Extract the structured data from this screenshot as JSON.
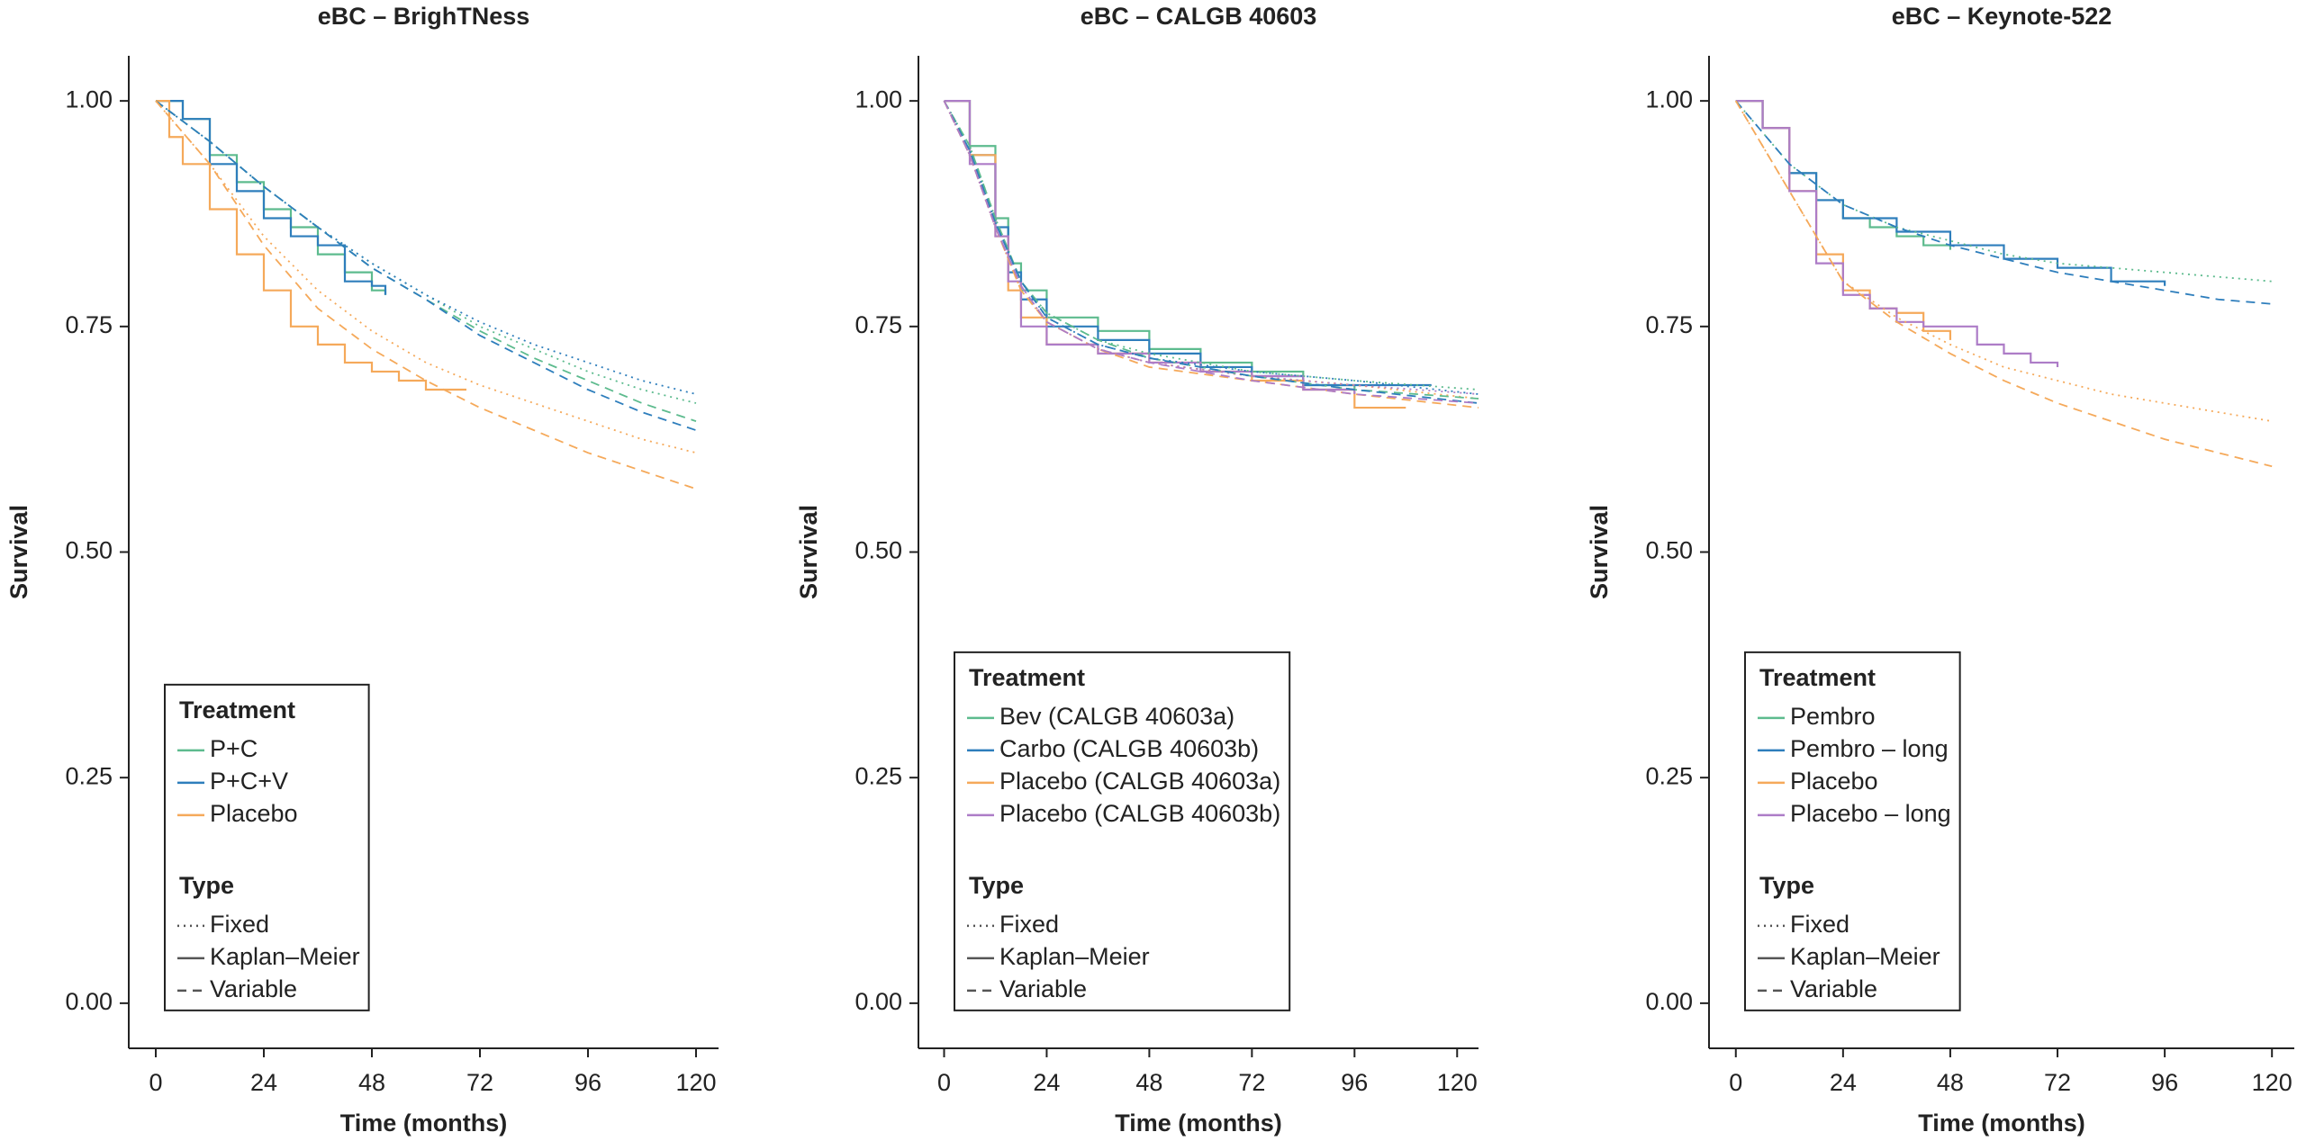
{
  "chart_data": [
    {
      "type": "line",
      "title": "eBC – BrighTNess",
      "x_label": "Time (months)",
      "y_label": "Survival",
      "xlim": [
        -6,
        125
      ],
      "ylim": [
        -0.05,
        1.05
      ],
      "xticks": [
        0,
        24,
        48,
        72,
        96,
        120
      ],
      "yticks": [
        {
          "value": 0,
          "label": "0.00"
        },
        {
          "value": 0.25,
          "label": "0.25"
        },
        {
          "value": 0.5,
          "label": "0.50"
        },
        {
          "value": 0.75,
          "label": "0.75"
        },
        {
          "value": 1,
          "label": "1.00"
        }
      ],
      "legend": {
        "position": "lower left",
        "groups": [
          {
            "title": "Treatment",
            "entries": [
              {
                "label": "P+C",
                "color": "#5dbb8e"
              },
              {
                "label": "P+C+V",
                "color": "#2e7ebc"
              },
              {
                "label": "Placebo",
                "color": "#f5a95a"
              }
            ]
          },
          {
            "title": "Type",
            "entries": [
              {
                "label": "Fixed",
                "dash": "dotted"
              },
              {
                "label": "Kaplan–Meier",
                "dash": "solid",
                "step": true
              },
              {
                "label": "Variable",
                "dash": "dashed"
              }
            ]
          }
        ]
      },
      "series": [
        {
          "treatment": 0,
          "linetype": 1,
          "x": [
            0,
            6,
            12,
            18,
            24,
            30,
            36,
            42,
            48,
            51
          ],
          "values": [
            1,
            0.98,
            0.94,
            0.91,
            0.88,
            0.86,
            0.83,
            0.81,
            0.79,
            0.785
          ]
        },
        {
          "treatment": 1,
          "linetype": 1,
          "x": [
            0,
            6,
            12,
            18,
            24,
            30,
            36,
            42,
            48,
            51
          ],
          "values": [
            1,
            0.98,
            0.93,
            0.9,
            0.87,
            0.85,
            0.84,
            0.8,
            0.795,
            0.785
          ]
        },
        {
          "treatment": 2,
          "linetype": 1,
          "x": [
            0,
            3,
            6,
            12,
            18,
            24,
            30,
            36,
            42,
            48,
            54,
            60,
            69
          ],
          "values": [
            1,
            0.96,
            0.93,
            0.88,
            0.83,
            0.79,
            0.75,
            0.73,
            0.71,
            0.7,
            0.69,
            0.68,
            0.68
          ]
        },
        {
          "treatment": 0,
          "linetype": 0,
          "x": [
            0,
            12,
            24,
            36,
            48,
            60,
            72,
            84,
            96,
            108,
            120
          ],
          "values": [
            1,
            0.955,
            0.905,
            0.86,
            0.82,
            0.785,
            0.75,
            0.725,
            0.7,
            0.68,
            0.665
          ]
        },
        {
          "treatment": 1,
          "linetype": 0,
          "x": [
            0,
            12,
            24,
            36,
            48,
            60,
            72,
            84,
            96,
            108,
            120
          ],
          "values": [
            1,
            0.955,
            0.905,
            0.86,
            0.82,
            0.785,
            0.755,
            0.73,
            0.71,
            0.69,
            0.675
          ]
        },
        {
          "treatment": 2,
          "linetype": 0,
          "x": [
            0,
            12,
            24,
            36,
            48,
            60,
            72,
            84,
            96,
            108,
            120
          ],
          "values": [
            1,
            0.93,
            0.85,
            0.79,
            0.745,
            0.71,
            0.685,
            0.665,
            0.645,
            0.625,
            0.61
          ]
        },
        {
          "treatment": 0,
          "linetype": 2,
          "x": [
            0,
            12,
            24,
            36,
            48,
            60,
            72,
            84,
            96,
            108,
            120
          ],
          "values": [
            1,
            0.955,
            0.905,
            0.86,
            0.815,
            0.78,
            0.745,
            0.715,
            0.69,
            0.665,
            0.645
          ]
        },
        {
          "treatment": 1,
          "linetype": 2,
          "x": [
            0,
            12,
            24,
            36,
            48,
            60,
            72,
            84,
            96,
            108,
            120
          ],
          "values": [
            1,
            0.955,
            0.905,
            0.86,
            0.815,
            0.78,
            0.74,
            0.71,
            0.68,
            0.655,
            0.635
          ]
        },
        {
          "treatment": 2,
          "linetype": 2,
          "x": [
            0,
            12,
            24,
            36,
            48,
            60,
            72,
            84,
            96,
            108,
            120
          ],
          "values": [
            1,
            0.93,
            0.84,
            0.77,
            0.725,
            0.69,
            0.66,
            0.635,
            0.61,
            0.59,
            0.57
          ]
        }
      ]
    },
    {
      "type": "line",
      "title": "eBC – CALGB 40603",
      "x_label": "Time (months)",
      "y_label": "Survival",
      "xlim": [
        -6,
        125
      ],
      "ylim": [
        -0.05,
        1.05
      ],
      "xticks": [
        0,
        24,
        48,
        72,
        96,
        120
      ],
      "yticks": [
        {
          "value": 0,
          "label": "0.00"
        },
        {
          "value": 0.25,
          "label": "0.25"
        },
        {
          "value": 0.5,
          "label": "0.50"
        },
        {
          "value": 0.75,
          "label": "0.75"
        },
        {
          "value": 1,
          "label": "1.00"
        }
      ],
      "legend": {
        "position": "lower left",
        "groups": [
          {
            "title": "Treatment",
            "entries": [
              {
                "label": "Bev (CALGB 40603a)",
                "color": "#5dbb8e"
              },
              {
                "label": "Carbo (CALGB 40603b)",
                "color": "#2e7ebc"
              },
              {
                "label": "Placebo (CALGB 40603a)",
                "color": "#f5a95a"
              },
              {
                "label": "Placebo (CALGB 40603b)",
                "color": "#ad7cc7"
              }
            ]
          },
          {
            "title": "Type",
            "entries": [
              {
                "label": "Fixed",
                "dash": "dotted"
              },
              {
                "label": "Kaplan–Meier",
                "dash": "solid",
                "step": true
              },
              {
                "label": "Variable",
                "dash": "dashed"
              }
            ]
          }
        ]
      },
      "series": [
        {
          "treatment": 0,
          "linetype": 1,
          "x": [
            0,
            6,
            12,
            15,
            18,
            24,
            36,
            48,
            60,
            72,
            84,
            96
          ],
          "values": [
            1,
            0.95,
            0.87,
            0.82,
            0.79,
            0.76,
            0.745,
            0.725,
            0.71,
            0.7,
            0.685,
            0.68
          ]
        },
        {
          "treatment": 1,
          "linetype": 1,
          "x": [
            0,
            6,
            12,
            15,
            18,
            24,
            36,
            48,
            60,
            72,
            84,
            96,
            114
          ],
          "values": [
            1,
            0.94,
            0.86,
            0.81,
            0.78,
            0.75,
            0.735,
            0.72,
            0.705,
            0.695,
            0.685,
            0.685,
            0.685
          ]
        },
        {
          "treatment": 2,
          "linetype": 1,
          "x": [
            0,
            6,
            12,
            15,
            18,
            24,
            36,
            48,
            60,
            72,
            84,
            96,
            108
          ],
          "values": [
            1,
            0.94,
            0.85,
            0.79,
            0.76,
            0.73,
            0.72,
            0.71,
            0.7,
            0.69,
            0.68,
            0.66,
            0.66
          ]
        },
        {
          "treatment": 3,
          "linetype": 1,
          "x": [
            0,
            6,
            12,
            15,
            18,
            24,
            36,
            48,
            60,
            72,
            84,
            96
          ],
          "values": [
            1,
            0.93,
            0.85,
            0.8,
            0.75,
            0.73,
            0.72,
            0.71,
            0.7,
            0.695,
            0.68,
            0.675
          ]
        },
        {
          "treatment": 0,
          "linetype": 0,
          "x": [
            0,
            6,
            12,
            18,
            24,
            36,
            48,
            72,
            96,
            125
          ],
          "values": [
            1,
            0.95,
            0.87,
            0.8,
            0.765,
            0.735,
            0.72,
            0.7,
            0.69,
            0.68
          ]
        },
        {
          "treatment": 1,
          "linetype": 0,
          "x": [
            0,
            6,
            12,
            18,
            24,
            36,
            48,
            72,
            96,
            125
          ],
          "values": [
            1,
            0.945,
            0.865,
            0.8,
            0.76,
            0.73,
            0.715,
            0.7,
            0.69,
            0.675
          ]
        },
        {
          "treatment": 2,
          "linetype": 0,
          "x": [
            0,
            6,
            12,
            18,
            24,
            36,
            48,
            72,
            96,
            125
          ],
          "values": [
            1,
            0.94,
            0.86,
            0.79,
            0.755,
            0.725,
            0.71,
            0.695,
            0.685,
            0.67
          ]
        },
        {
          "treatment": 3,
          "linetype": 0,
          "x": [
            0,
            6,
            12,
            18,
            24,
            36,
            48,
            72,
            96,
            125
          ],
          "values": [
            1,
            0.94,
            0.86,
            0.795,
            0.755,
            0.725,
            0.71,
            0.695,
            0.685,
            0.675
          ]
        },
        {
          "treatment": 0,
          "linetype": 2,
          "x": [
            0,
            6,
            12,
            18,
            24,
            36,
            48,
            72,
            96,
            125
          ],
          "values": [
            1,
            0.95,
            0.87,
            0.8,
            0.765,
            0.735,
            0.715,
            0.695,
            0.68,
            0.67
          ]
        },
        {
          "treatment": 1,
          "linetype": 2,
          "x": [
            0,
            6,
            12,
            18,
            24,
            36,
            48,
            72,
            96,
            125
          ],
          "values": [
            1,
            0.945,
            0.865,
            0.8,
            0.76,
            0.73,
            0.715,
            0.695,
            0.68,
            0.665
          ]
        },
        {
          "treatment": 2,
          "linetype": 2,
          "x": [
            0,
            6,
            12,
            18,
            24,
            36,
            48,
            72,
            96,
            125
          ],
          "values": [
            1,
            0.94,
            0.86,
            0.79,
            0.755,
            0.725,
            0.705,
            0.69,
            0.675,
            0.66
          ]
        },
        {
          "treatment": 3,
          "linetype": 2,
          "x": [
            0,
            6,
            12,
            18,
            24,
            36,
            48,
            72,
            96,
            125
          ],
          "values": [
            1,
            0.94,
            0.86,
            0.795,
            0.755,
            0.725,
            0.71,
            0.69,
            0.675,
            0.665
          ]
        }
      ]
    },
    {
      "type": "line",
      "title": "eBC – Keynote-522",
      "x_label": "Time (months)",
      "y_label": "Survival",
      "xlim": [
        -6,
        125
      ],
      "ylim": [
        -0.05,
        1.05
      ],
      "xticks": [
        0,
        24,
        48,
        72,
        96,
        120
      ],
      "yticks": [
        {
          "value": 0,
          "label": "0.00"
        },
        {
          "value": 0.25,
          "label": "0.25"
        },
        {
          "value": 0.5,
          "label": "0.50"
        },
        {
          "value": 0.75,
          "label": "0.75"
        },
        {
          "value": 1,
          "label": "1.00"
        }
      ],
      "legend": {
        "position": "lower left",
        "groups": [
          {
            "title": "Treatment",
            "entries": [
              {
                "label": "Pembro",
                "color": "#5dbb8e"
              },
              {
                "label": "Pembro – long",
                "color": "#2e7ebc"
              },
              {
                "label": "Placebo",
                "color": "#f5a95a"
              },
              {
                "label": "Placebo – long",
                "color": "#ad7cc7"
              }
            ]
          },
          {
            "title": "Type",
            "entries": [
              {
                "label": "Fixed",
                "dash": "dotted"
              },
              {
                "label": "Kaplan–Meier",
                "dash": "solid",
                "step": true
              },
              {
                "label": "Variable",
                "dash": "dashed"
              }
            ]
          }
        ]
      },
      "series": [
        {
          "treatment": 0,
          "linetype": 1,
          "x": [
            0,
            6,
            12,
            18,
            24,
            30,
            36,
            42,
            48
          ],
          "values": [
            1,
            0.97,
            0.92,
            0.89,
            0.87,
            0.86,
            0.85,
            0.84,
            0.835
          ]
        },
        {
          "treatment": 1,
          "linetype": 1,
          "x": [
            0,
            6,
            12,
            18,
            24,
            36,
            48,
            60,
            72,
            84,
            96
          ],
          "values": [
            1,
            0.97,
            0.92,
            0.89,
            0.87,
            0.855,
            0.84,
            0.825,
            0.815,
            0.8,
            0.795
          ]
        },
        {
          "treatment": 2,
          "linetype": 1,
          "x": [
            0,
            6,
            12,
            18,
            24,
            30,
            36,
            42,
            48
          ],
          "values": [
            1,
            0.97,
            0.9,
            0.83,
            0.79,
            0.77,
            0.765,
            0.745,
            0.735
          ]
        },
        {
          "treatment": 3,
          "linetype": 1,
          "x": [
            0,
            6,
            12,
            18,
            24,
            30,
            36,
            42,
            48,
            54,
            60,
            66,
            72
          ],
          "values": [
            1,
            0.97,
            0.9,
            0.82,
            0.785,
            0.77,
            0.755,
            0.75,
            0.75,
            0.73,
            0.72,
            0.71,
            0.705
          ]
        },
        {
          "treatment": 0,
          "linetype": 0,
          "x": [
            0,
            12,
            24,
            36,
            48,
            60,
            72,
            84,
            96,
            108,
            120
          ],
          "values": [
            1,
            0.93,
            0.885,
            0.86,
            0.845,
            0.83,
            0.82,
            0.815,
            0.81,
            0.805,
            0.8
          ]
        },
        {
          "treatment": 1,
          "linetype": 2,
          "x": [
            0,
            12,
            24,
            36,
            48,
            60,
            72,
            84,
            96,
            108,
            120
          ],
          "values": [
            1,
            0.93,
            0.885,
            0.86,
            0.84,
            0.825,
            0.81,
            0.8,
            0.79,
            0.78,
            0.775
          ]
        },
        {
          "treatment": 2,
          "linetype": 0,
          "x": [
            0,
            12,
            24,
            36,
            48,
            60,
            72,
            84,
            96,
            108,
            120
          ],
          "values": [
            1,
            0.9,
            0.8,
            0.76,
            0.73,
            0.705,
            0.69,
            0.675,
            0.665,
            0.655,
            0.645
          ]
        },
        {
          "treatment": 2,
          "linetype": 2,
          "x": [
            0,
            12,
            24,
            36,
            48,
            60,
            72,
            84,
            96,
            108,
            120
          ],
          "values": [
            1,
            0.9,
            0.8,
            0.755,
            0.72,
            0.69,
            0.665,
            0.645,
            0.625,
            0.61,
            0.595
          ]
        }
      ]
    }
  ]
}
